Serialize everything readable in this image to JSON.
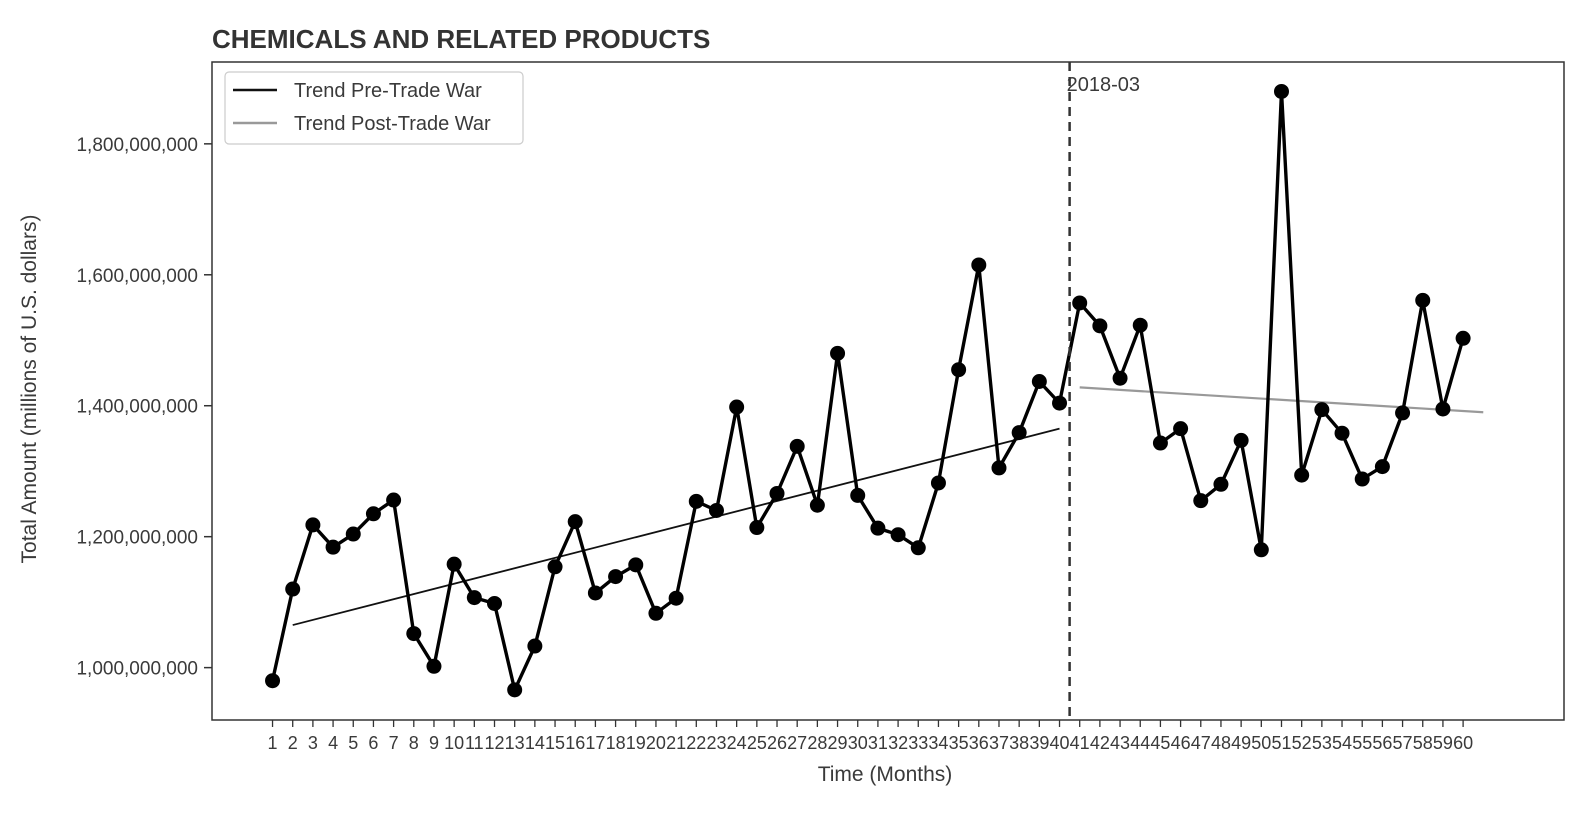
{
  "chart_data": {
    "type": "line",
    "title": "CHEMICALS AND RELATED PRODUCTS",
    "xlabel": "Time (Months)",
    "ylabel": "Total Amount (millions of U.S. dollars)",
    "x": [
      1,
      2,
      3,
      4,
      5,
      6,
      7,
      8,
      9,
      10,
      11,
      12,
      13,
      14,
      15,
      16,
      17,
      18,
      19,
      20,
      21,
      22,
      23,
      24,
      25,
      26,
      27,
      28,
      29,
      30,
      31,
      32,
      33,
      34,
      35,
      36,
      37,
      38,
      39,
      40,
      41,
      42,
      43,
      44,
      45,
      46,
      47,
      48,
      49,
      50,
      51,
      52,
      53,
      54,
      55,
      56,
      57,
      58,
      59,
      60
    ],
    "xlim": [
      -2,
      65
    ],
    "ylim": [
      920000000,
      1925000000
    ],
    "yticks": [
      1000000000,
      1200000000,
      1400000000,
      1600000000,
      1800000000
    ],
    "ytick_labels": [
      "1,000,000,000",
      "1,200,000,000",
      "1,400,000,000",
      "1,600,000,000",
      "1,800,000,000"
    ],
    "grid": false,
    "legend_position": "top-left",
    "series": [
      {
        "values": [
          980000000,
          1120000000,
          1218000000,
          1184000000,
          1204000000,
          1235000000,
          1256000000,
          1052000000,
          1002000000,
          1158000000,
          1107000000,
          1098000000,
          966000000,
          1033000000,
          1154000000,
          1223000000,
          1114000000,
          1139000000,
          1157000000,
          1083000000,
          1106000000,
          1254000000,
          1240000000,
          1398000000,
          1214000000,
          1266000000,
          1338000000,
          1248000000,
          1480000000,
          1263000000,
          1213000000,
          1203000000,
          1183000000,
          1282000000,
          1455000000,
          1615000000,
          1305000000,
          1359000000,
          1437000000,
          1404000000,
          1557000000,
          1522000000,
          1442000000,
          1523000000,
          1343000000,
          1365000000,
          1255000000,
          1280000000,
          1347000000,
          1180000000,
          1880000000,
          1294000000,
          1394000000,
          1358000000,
          1288000000,
          1307000000,
          1389000000,
          1561000000,
          1395000000,
          1503000000
        ],
        "color": "#000000"
      }
    ],
    "trend_lines": [
      {
        "name": "Trend Pre-Trade War",
        "x": [
          2,
          40
        ],
        "y": [
          1065000000,
          1365000000
        ],
        "color": "#111111"
      },
      {
        "name": "Trend Post-Trade War",
        "x": [
          41,
          61
        ],
        "y": [
          1428000000,
          1390000000
        ],
        "color": "#999999"
      }
    ],
    "vline": {
      "x": 40.5,
      "label": "2018-03",
      "style": "dashed",
      "color": "#333333"
    },
    "legend": [
      "Trend Pre-Trade War",
      "Trend Post-Trade War"
    ]
  }
}
